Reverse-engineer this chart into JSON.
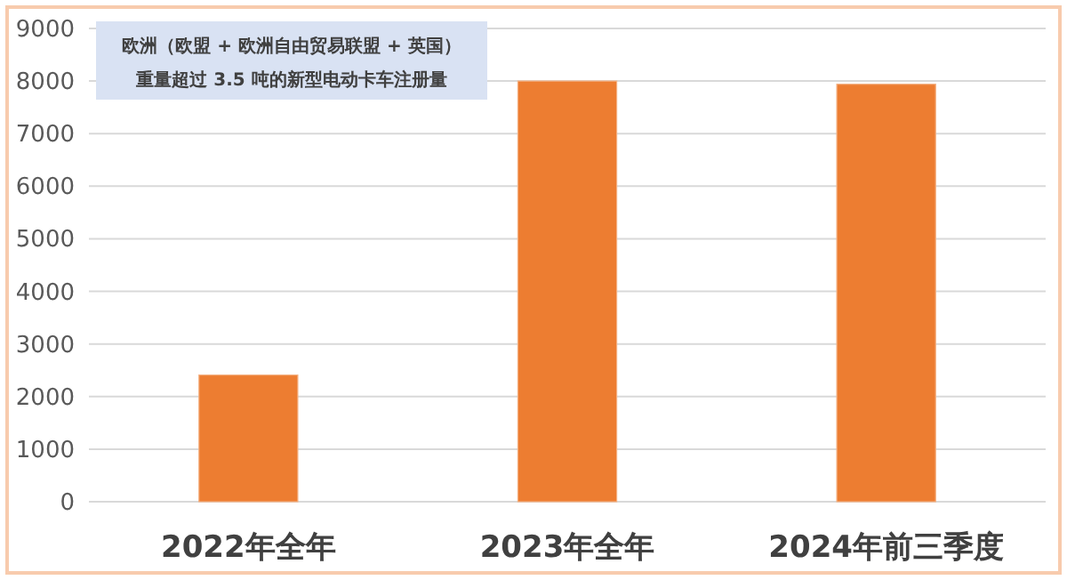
{
  "chart_data": {
    "type": "bar",
    "title": "欧洲（欧盟 + 欧洲自由贸易联盟 + 英国）",
    "subtitle": "重量超过 3.5 吨的新型电动卡车注册量",
    "categories": [
      "2022年全年",
      "2023年全年",
      "2024年前三季度"
    ],
    "values": [
      2410,
      8000,
      7940
    ],
    "color": "#ed7d31",
    "ylim": [
      0,
      9000
    ],
    "yticks": [
      0,
      1000,
      2000,
      3000,
      4000,
      5000,
      6000,
      7000,
      8000,
      9000
    ],
    "grid": "y"
  }
}
